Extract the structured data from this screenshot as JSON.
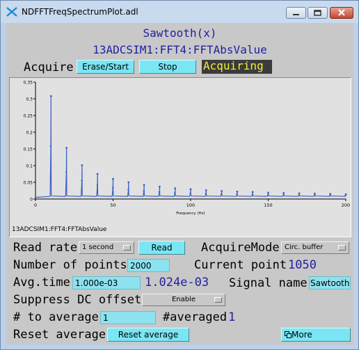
{
  "window": {
    "title": "NDFFTFreqSpectrumPlot.adl"
  },
  "header": {
    "function": "Sawtooth(x)",
    "pv": "13ADCSIM1:FFT4:FFTAbsValue"
  },
  "acquire": {
    "label": "Acquire",
    "erase_start": "Erase/Start",
    "stop": "Stop",
    "status": "Acquiring"
  },
  "plot": {
    "footer_label": "13ADCSIM1:FFT4:FFTAbsValue"
  },
  "chart_data": {
    "type": "line",
    "title": "",
    "xlabel": "Frequency (Hz)",
    "ylabel": "",
    "xlim": [
      0,
      200
    ],
    "ylim": [
      0,
      0.35
    ],
    "x_ticks": [
      "0",
      "50",
      "100",
      "150",
      "200"
    ],
    "y_ticks": [
      "0",
      "0.05",
      "0.1",
      "0.15",
      "0.2",
      "0.25",
      "0.3",
      "0.35"
    ],
    "baseline": 0.005,
    "series": [
      {
        "name": "FFTAbsValue",
        "color": "#3b5fc8",
        "peaks": [
          {
            "x": 10,
            "y": 0.308
          },
          {
            "x": 20,
            "y": 0.153
          },
          {
            "x": 30,
            "y": 0.101
          },
          {
            "x": 40,
            "y": 0.075
          },
          {
            "x": 50,
            "y": 0.06
          },
          {
            "x": 60,
            "y": 0.05
          },
          {
            "x": 70,
            "y": 0.042
          },
          {
            "x": 80,
            "y": 0.037
          },
          {
            "x": 90,
            "y": 0.032
          },
          {
            "x": 100,
            "y": 0.029
          },
          {
            "x": 110,
            "y": 0.026
          },
          {
            "x": 120,
            "y": 0.024
          },
          {
            "x": 130,
            "y": 0.022
          },
          {
            "x": 140,
            "y": 0.021
          },
          {
            "x": 150,
            "y": 0.019
          },
          {
            "x": 160,
            "y": 0.018
          },
          {
            "x": 170,
            "y": 0.017
          },
          {
            "x": 180,
            "y": 0.016
          },
          {
            "x": 190,
            "y": 0.015
          },
          {
            "x": 200,
            "y": 0.014
          }
        ],
        "secondary": [
          {
            "x": 10,
            "y": 0.158
          },
          {
            "x": 20,
            "y": 0.081
          },
          {
            "x": 30,
            "y": 0.055
          },
          {
            "x": 40,
            "y": 0.041
          },
          {
            "x": 50,
            "y": 0.034
          },
          {
            "x": 60,
            "y": 0.028
          },
          {
            "x": 70,
            "y": 0.024
          },
          {
            "x": 80,
            "y": 0.021
          },
          {
            "x": 90,
            "y": 0.019
          },
          {
            "x": 100,
            "y": 0.017
          },
          {
            "x": 110,
            "y": 0.016
          },
          {
            "x": 120,
            "y": 0.015
          },
          {
            "x": 130,
            "y": 0.014
          },
          {
            "x": 140,
            "y": 0.013
          },
          {
            "x": 150,
            "y": 0.012
          },
          {
            "x": 160,
            "y": 0.012
          },
          {
            "x": 170,
            "y": 0.011
          },
          {
            "x": 180,
            "y": 0.011
          },
          {
            "x": 190,
            "y": 0.01
          },
          {
            "x": 200,
            "y": 0.01
          }
        ]
      }
    ]
  },
  "controls": {
    "read_rate": {
      "label": "Read rate",
      "value": "1 second",
      "read_button": "Read"
    },
    "acquire_mode": {
      "label": "AcquireMode",
      "value": "Circ. buffer"
    },
    "num_points": {
      "label": "Number of points",
      "value": "2000"
    },
    "current_point": {
      "label": "Current point",
      "value": "1050"
    },
    "avg_time": {
      "label": "Avg.time",
      "value": "1.000e-03",
      "readback": "1.024e-03"
    },
    "signal_name": {
      "label": "Signal name",
      "value": "Sawtooth"
    },
    "suppress_dc": {
      "label": "Suppress DC offset",
      "value": "Enable"
    },
    "to_average": {
      "label": "# to average",
      "value": "1"
    },
    "averaged": {
      "label": "#averaged",
      "value": "1"
    },
    "reset_average": {
      "label": "Reset average",
      "button": "Reset average"
    },
    "more": {
      "label": "More"
    }
  }
}
